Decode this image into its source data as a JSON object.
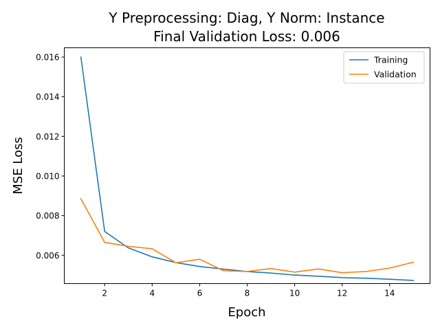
{
  "chart_data": {
    "type": "line",
    "title_line1": "Y Preprocessing: Diag, Y Norm: Instance",
    "title_line2": "Final Validation Loss: 0.006",
    "xlabel": "Epoch",
    "ylabel": "MSE Loss",
    "xlim": [
      0.3,
      15.7
    ],
    "ylim": [
      0.00457,
      0.01647
    ],
    "x_ticks": [
      2,
      4,
      6,
      8,
      10,
      12,
      14
    ],
    "y_ticks": [
      0.006,
      0.008,
      0.01,
      0.012,
      0.014,
      0.016
    ],
    "y_tick_labels": [
      "0.006",
      "0.008",
      "0.010",
      "0.012",
      "0.014",
      "0.016"
    ],
    "x_tick_labels": [
      "2",
      "4",
      "6",
      "8",
      "10",
      "12",
      "14"
    ],
    "grid": false,
    "legend_position": "top-right",
    "x": [
      1,
      2,
      3,
      4,
      5,
      6,
      7,
      8,
      9,
      10,
      11,
      12,
      13,
      14,
      15
    ],
    "series": [
      {
        "name": "Training",
        "color": "#1f77b4",
        "values": [
          0.016,
          0.0072,
          0.00637,
          0.00592,
          0.00563,
          0.00543,
          0.0053,
          0.00518,
          0.0051,
          0.005,
          0.00494,
          0.00487,
          0.00484,
          0.00479,
          0.00473
        ]
      },
      {
        "name": "Validation",
        "color": "#ff7f0e",
        "values": [
          0.00885,
          0.00665,
          0.00645,
          0.00633,
          0.00562,
          0.0058,
          0.00522,
          0.00518,
          0.00533,
          0.00515,
          0.00531,
          0.00512,
          0.00518,
          0.00535,
          0.00565
        ]
      }
    ]
  }
}
